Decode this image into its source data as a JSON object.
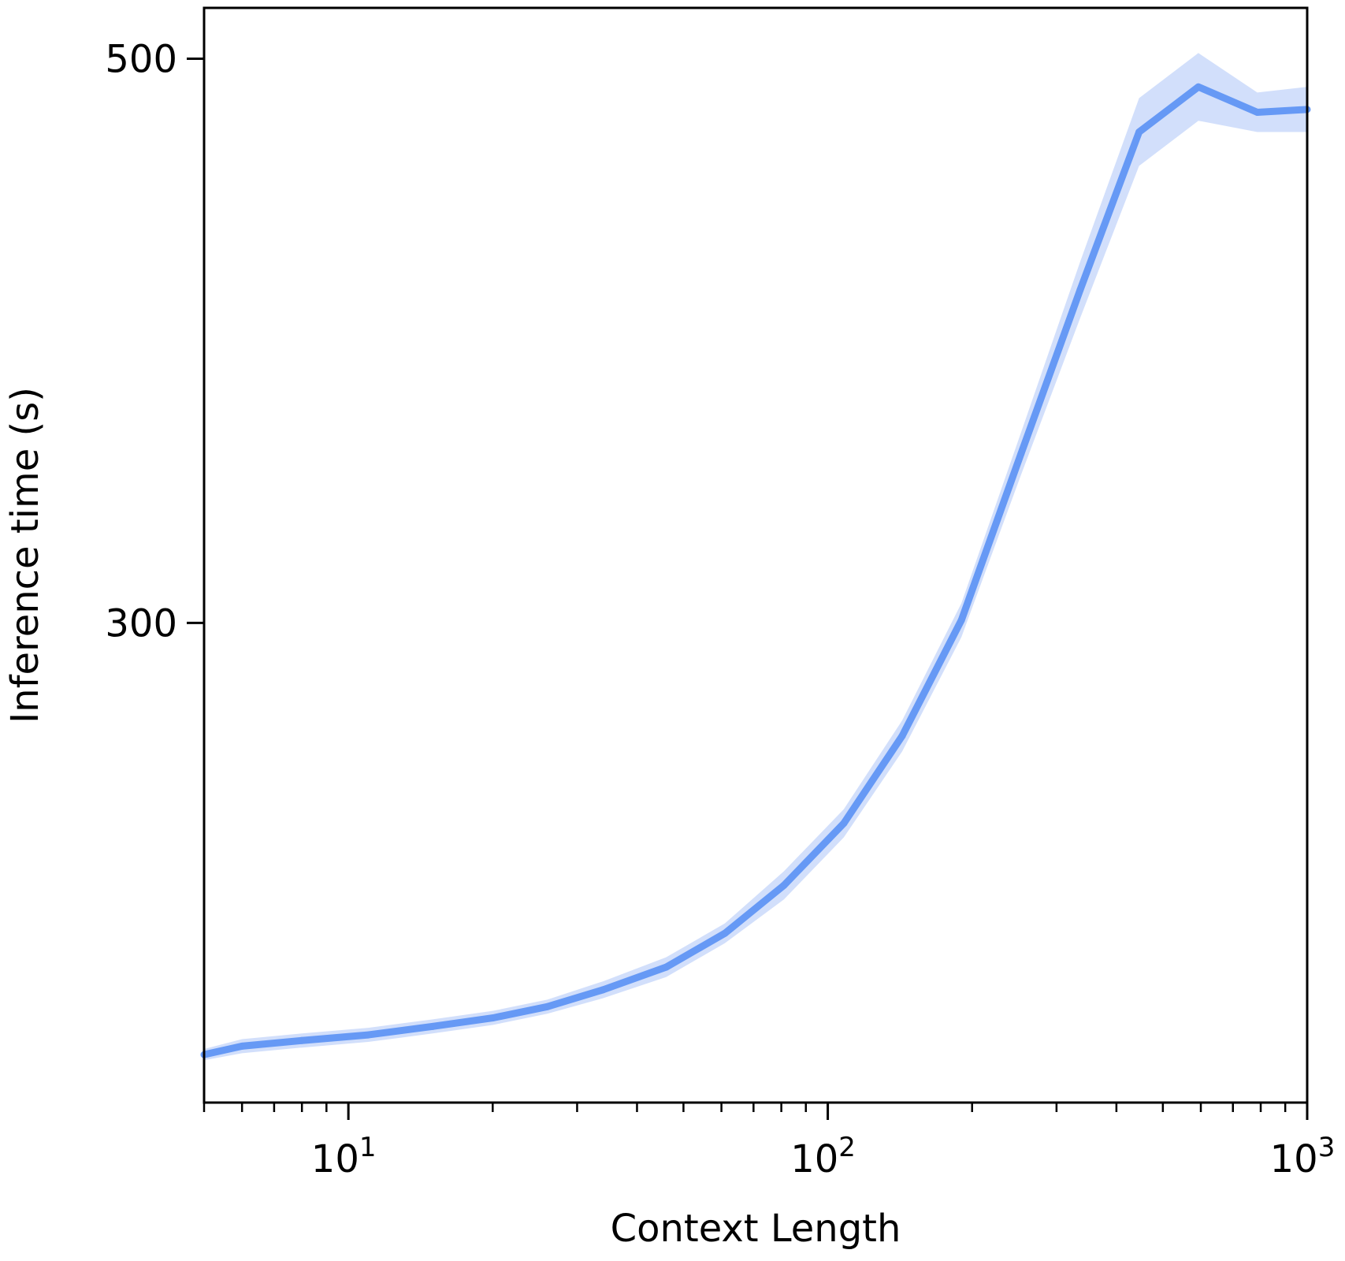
{
  "chart_data": {
    "type": "line",
    "title": "",
    "xlabel": "Context Length",
    "ylabel": "Inference time (s)",
    "x_scale": "log",
    "y_scale": "linear",
    "xlim": [
      5,
      1000
    ],
    "ylim": [
      130,
      518
    ],
    "grid": false,
    "legend": "none",
    "x_ticks": [
      {
        "value": 10,
        "base": "10",
        "exp": "1"
      },
      {
        "value": 100,
        "base": "10",
        "exp": "2"
      },
      {
        "value": 1000,
        "base": "10",
        "exp": "3"
      }
    ],
    "y_ticks": [
      {
        "value": 300,
        "label": "300"
      },
      {
        "value": 500,
        "label": "500"
      }
    ],
    "series": [
      {
        "color": "#6699f5",
        "band_color": "#cddcfb",
        "x": [
          5,
          6,
          8,
          11,
          15,
          20,
          26,
          34,
          46,
          61,
          81,
          108,
          143,
          190,
          253,
          336,
          446,
          593,
          787,
          1000
        ],
        "y": [
          147,
          150,
          152,
          154,
          157,
          160,
          164,
          170,
          178,
          190,
          207,
          229,
          260,
          301,
          360,
          418,
          474,
          490,
          481,
          482
        ],
        "y_lower": [
          145,
          147.5,
          149.5,
          151.5,
          154.5,
          157.5,
          161.5,
          167,
          174.5,
          186.5,
          202,
          224,
          254.5,
          295,
          352.5,
          408,
          462,
          478,
          474,
          474
        ],
        "y_upper": [
          149,
          152.5,
          154.5,
          156.5,
          159.5,
          162.5,
          166.5,
          173,
          181.5,
          193.5,
          212,
          234,
          265.5,
          307,
          367.5,
          428,
          486,
          502,
          488,
          490
        ]
      }
    ]
  }
}
